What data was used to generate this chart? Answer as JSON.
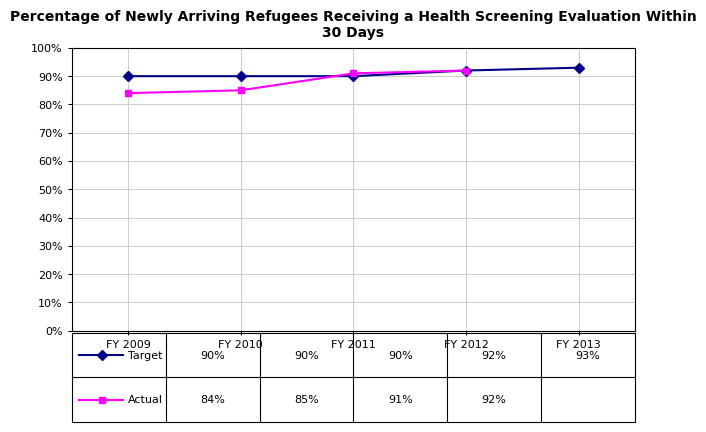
{
  "title": "Percentage of Newly Arriving Refugees Receiving a Health Screening Evaluation Within\n30 Days",
  "categories": [
    "FY 2009",
    "FY 2010",
    "FY 2011",
    "FY 2012",
    "FY 2013"
  ],
  "target_values": [
    90,
    90,
    90,
    92,
    93
  ],
  "actual_values": [
    84,
    85,
    91,
    92,
    null
  ],
  "target_color": "#00008B",
  "actual_color": "#FF00FF",
  "ylim": [
    0,
    100
  ],
  "yticks": [
    0,
    10,
    20,
    30,
    40,
    50,
    60,
    70,
    80,
    90,
    100
  ],
  "ytick_labels": [
    "0%",
    "10%",
    "20%",
    "30%",
    "40%",
    "50%",
    "60%",
    "70%",
    "80%",
    "90%",
    "100%"
  ],
  "target_row": [
    "90%",
    "90%",
    "90%",
    "92%",
    "93%"
  ],
  "actual_row": [
    "84%",
    "85%",
    "91%",
    "92%",
    ""
  ],
  "background_color": "#FFFFFF",
  "grid_color": "#CCCCCC",
  "table_border_color": "#000000",
  "title_fontsize": 10,
  "tick_fontsize": 8,
  "table_fontsize": 8
}
